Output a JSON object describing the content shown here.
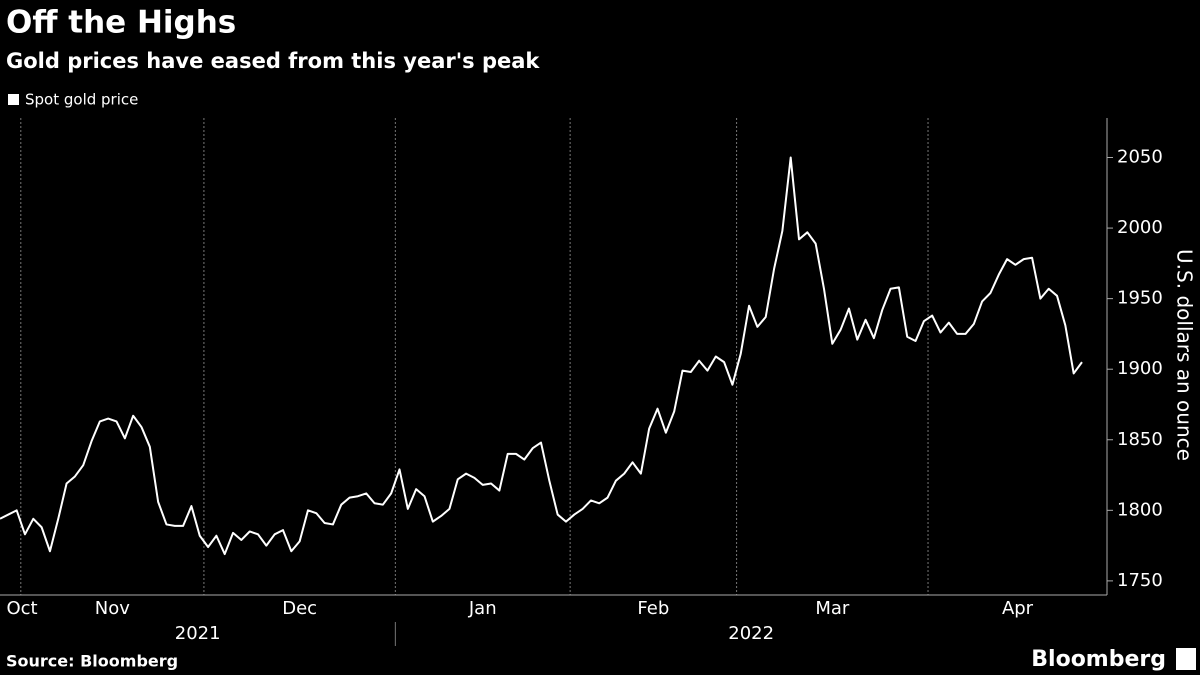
{
  "chart_data": {
    "type": "line",
    "title": "Off the Highs",
    "subtitle": "Gold prices have eased from this year's peak",
    "y_axis_label": "U.S. dollars an ounce",
    "source": "Source: Bloomberg",
    "logo": "Bloomberg",
    "categories": [
      "Oct",
      null,
      null,
      "Nov",
      null,
      null,
      null,
      null,
      null,
      null,
      null,
      null,
      null,
      null,
      null,
      null,
      null,
      null,
      null,
      null,
      null,
      null,
      null,
      null,
      null,
      "Dec",
      null,
      null,
      null,
      null,
      null,
      null,
      null,
      null,
      null,
      null,
      null,
      null,
      null,
      null,
      null,
      null,
      null,
      null,
      null,
      null,
      null,
      null,
      "Jan",
      null,
      null,
      null,
      null,
      null,
      null,
      null,
      null,
      null,
      null,
      null,
      null,
      null,
      null,
      null,
      null,
      null,
      null,
      null,
      null,
      "Feb",
      null,
      null,
      null,
      null,
      null,
      null,
      null,
      null,
      null,
      null,
      null,
      null,
      null,
      null,
      null,
      null,
      null,
      null,
      null,
      "Mar",
      null,
      null,
      null,
      null,
      null,
      null,
      null,
      null,
      null,
      null,
      null,
      null,
      null,
      null,
      null,
      null,
      null,
      null,
      null,
      null,
      null,
      null,
      "Apr",
      null,
      null,
      null,
      null,
      null,
      null,
      null,
      null,
      null,
      null,
      null,
      null,
      null,
      null,
      null,
      null,
      null,
      null
    ],
    "category_years": [
      "2021",
      null,
      null,
      null,
      null,
      null,
      null,
      null,
      null,
      null,
      null,
      null,
      null,
      null,
      null,
      null,
      null,
      null,
      null,
      null,
      null,
      null,
      null,
      null,
      null,
      null,
      null,
      null,
      null,
      null,
      null,
      null,
      null,
      null,
      null,
      null,
      null,
      null,
      null,
      null,
      null,
      null,
      null,
      null,
      null,
      null,
      null,
      null,
      "2022",
      null,
      null,
      null,
      null,
      null,
      null,
      null,
      null,
      null,
      null,
      null,
      null,
      null,
      null,
      null,
      null,
      null,
      null,
      null,
      null,
      null,
      null,
      null,
      null,
      null,
      null,
      null,
      null,
      null,
      null,
      null,
      null,
      null,
      null,
      null,
      null,
      null,
      null,
      null,
      null,
      null,
      null,
      null,
      null,
      null,
      null,
      null,
      null,
      null,
      null,
      null,
      null,
      null,
      null,
      null,
      null,
      null,
      null,
      null,
      null,
      null,
      null,
      null,
      null,
      null,
      null,
      null,
      null,
      null,
      null,
      null,
      null,
      null,
      null,
      null,
      null,
      null,
      null,
      null,
      null,
      null,
      null
    ],
    "series": [
      {
        "name": "Spot gold price",
        "color": "#ffffff",
        "values": [
          1794,
          1797,
          1800,
          1783,
          1794,
          1788,
          1771,
          1794,
          1819,
          1824,
          1832,
          1849,
          1863,
          1865,
          1863,
          1851,
          1867,
          1859,
          1845,
          1806,
          1790,
          1789,
          1789,
          1803,
          1782,
          1774,
          1782,
          1769,
          1784,
          1779,
          1785,
          1783,
          1775,
          1783,
          1786,
          1771,
          1778,
          1800,
          1798,
          1791,
          1790,
          1804,
          1809,
          1810,
          1812,
          1805,
          1804,
          1812,
          1829,
          1801,
          1815,
          1810,
          1792,
          1796,
          1801,
          1822,
          1826,
          1823,
          1818,
          1819,
          1814,
          1840,
          1840,
          1836,
          1844,
          1848,
          1821,
          1797,
          1792,
          1797,
          1801,
          1807,
          1805,
          1809,
          1821,
          1826,
          1834,
          1826,
          1858,
          1872,
          1855,
          1870,
          1899,
          1898,
          1906,
          1899,
          1909,
          1905,
          1889,
          1911,
          1945,
          1930,
          1937,
          1971,
          1998,
          2050,
          1992,
          1997,
          1989,
          1957,
          1918,
          1928,
          1943,
          1921,
          1935,
          1922,
          1942,
          1957,
          1958,
          1923,
          1920,
          1934,
          1938,
          1926,
          1933,
          1925,
          1925,
          1932,
          1948,
          1954,
          1967,
          1978,
          1974,
          1978,
          1979,
          1950,
          1957,
          1952,
          1931,
          1897,
          1905
        ]
      }
    ],
    "ylim": [
      1740,
      2078
    ],
    "yticks": [
      1750,
      1800,
      1850,
      1900,
      1950,
      2000,
      2050
    ],
    "grid": true
  }
}
